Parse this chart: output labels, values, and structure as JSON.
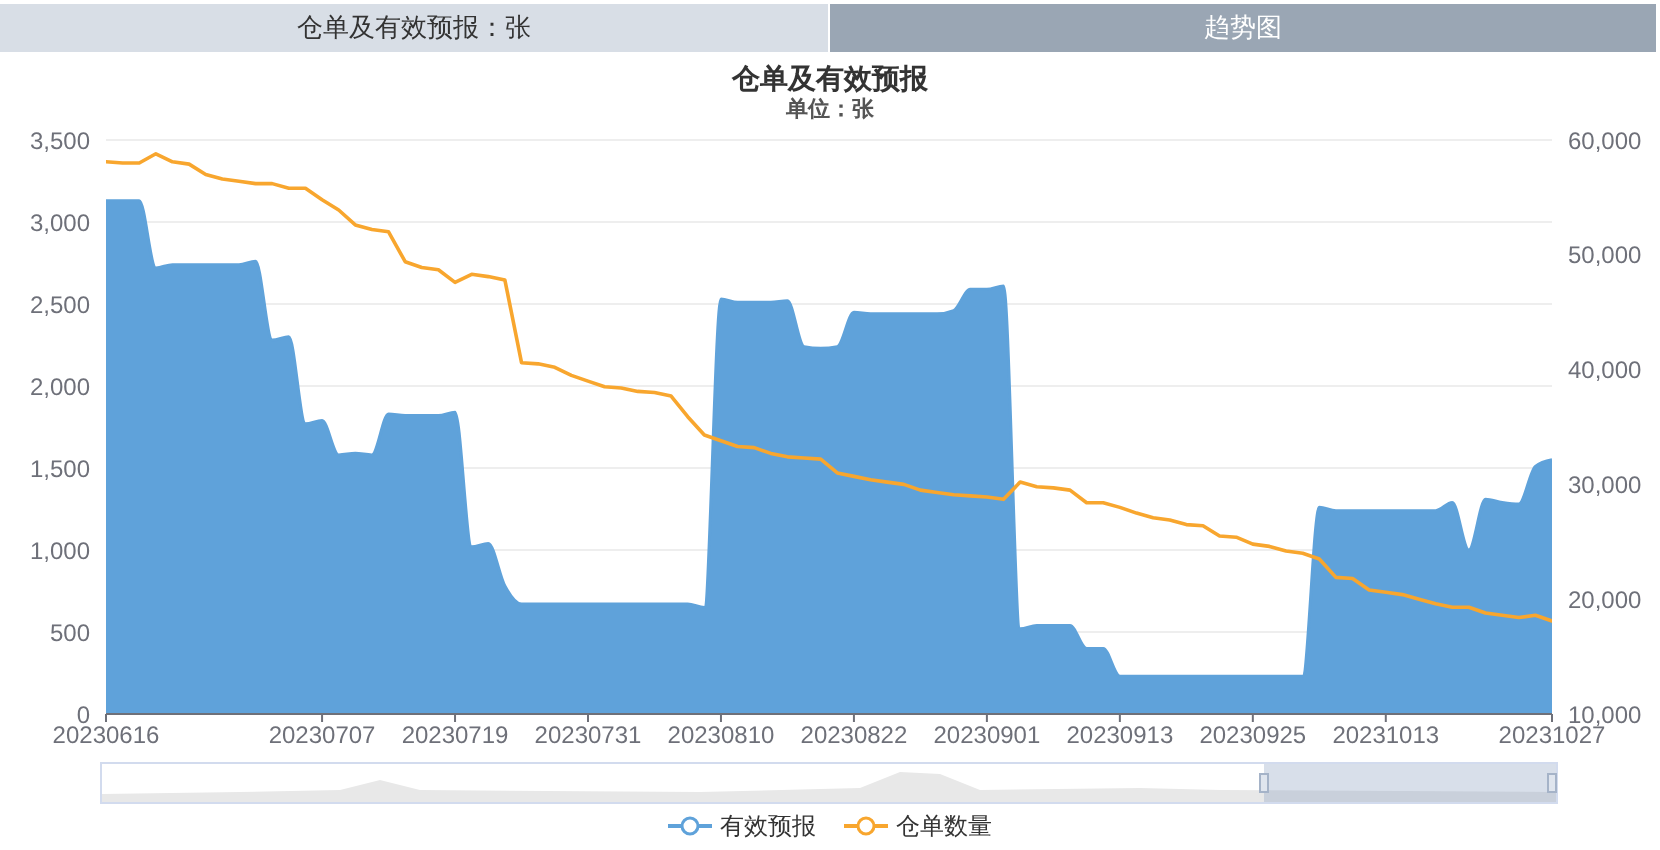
{
  "chart_data": {
    "type": "area",
    "title": "仓单及有效预报",
    "subtitle": "单位：张",
    "annotations": [
      "仓单及有效预报：张",
      "趋势图"
    ],
    "categories": [
      "20230616",
      null,
      null,
      null,
      null,
      null,
      null,
      null,
      null,
      null,
      null,
      null,
      null,
      "20230707",
      null,
      null,
      null,
      null,
      null,
      null,
      null,
      "20230719",
      null,
      null,
      null,
      null,
      null,
      null,
      null,
      "20230731",
      null,
      null,
      null,
      null,
      null,
      null,
      null,
      "20230810",
      null,
      null,
      null,
      null,
      null,
      null,
      null,
      "20230822",
      null,
      null,
      null,
      null,
      null,
      null,
      null,
      "20230901",
      null,
      null,
      null,
      null,
      null,
      null,
      null,
      "20230913",
      null,
      null,
      null,
      null,
      null,
      null,
      null,
      "20230925",
      null,
      null,
      null,
      null,
      null,
      null,
      null,
      "20231013",
      null,
      null,
      null,
      null,
      null,
      null,
      null,
      null,
      null,
      "20231027"
    ],
    "series": [
      {
        "name": "有效预报",
        "color": "#5fa2da",
        "values": [
          3130,
          3130,
          3130,
          2720,
          2740,
          2740,
          2740,
          2740,
          2740,
          2760,
          2280,
          2300,
          1770,
          1790,
          1580,
          1590,
          1580,
          1830,
          1820,
          1820,
          1820,
          1840,
          1020,
          1040,
          780,
          670,
          670,
          670,
          670,
          670,
          670,
          670,
          670,
          670,
          670,
          670,
          650,
          2530,
          2510,
          2510,
          2510,
          2520,
          2240,
          2230,
          2240,
          2450,
          2440,
          2440,
          2440,
          2440,
          2440,
          2460,
          2590,
          2590,
          2610,
          520,
          540,
          540,
          540,
          400,
          400,
          230,
          230,
          230,
          230,
          230,
          230,
          230,
          230,
          230,
          230,
          230,
          230,
          1260,
          1240,
          1240,
          1240,
          1240,
          1240,
          1240,
          1240,
          1290,
          1000,
          1310,
          1290,
          1280,
          1510,
          1550
        ]
      },
      {
        "name": "仓单数量",
        "type": "line",
        "color": "#f8a62e",
        "axis": "y2",
        "values": [
          58100,
          58000,
          58000,
          58800,
          58100,
          57900,
          57000,
          56600,
          56400,
          56200,
          56200,
          55800,
          55800,
          54800,
          53900,
          52600,
          52200,
          52000,
          49400,
          48900,
          48700,
          47600,
          48300,
          48100,
          47800,
          40600,
          40500,
          40200,
          39500,
          39000,
          38500,
          38400,
          38100,
          38000,
          37700,
          35900,
          34300,
          33800,
          33300,
          33200,
          32700,
          32400,
          32300,
          32200,
          31000,
          30700,
          30400,
          30200,
          30000,
          29500,
          29300,
          29100,
          29000,
          28900,
          28700,
          30200,
          29800,
          29700,
          29500,
          28400,
          28400,
          28000,
          27500,
          27100,
          26900,
          26500,
          26400,
          25500,
          25400,
          24800,
          24600,
          24200,
          24000,
          23500,
          21900,
          21800,
          20800,
          20600,
          20400,
          20000,
          19600,
          19300,
          19300,
          18800,
          18600,
          18400,
          18600,
          18100
        ]
      }
    ],
    "ylim": [
      0,
      3500
    ],
    "yticks": [
      0,
      500,
      {
        "value": 1000,
        "label": "1,000"
      },
      {
        "value": 1500,
        "label": "1,500"
      },
      {
        "value": 2000,
        "label": "2,000"
      },
      {
        "value": 2500,
        "label": "2,500"
      },
      {
        "value": 3000,
        "label": "3,000"
      },
      {
        "value": 3500,
        "label": "3,500"
      }
    ],
    "y2lim": [
      10000,
      60000
    ],
    "y2ticks": [
      {
        "value": 10000,
        "label": "10,000"
      },
      {
        "value": 20000,
        "label": "20,000"
      },
      {
        "value": 30000,
        "label": "30,000"
      },
      {
        "value": 40000,
        "label": "40,000"
      },
      {
        "value": 50000,
        "label": "50,000"
      },
      {
        "value": 60000,
        "label": "60,000"
      }
    ],
    "grid": "y",
    "legend": "bottom"
  }
}
